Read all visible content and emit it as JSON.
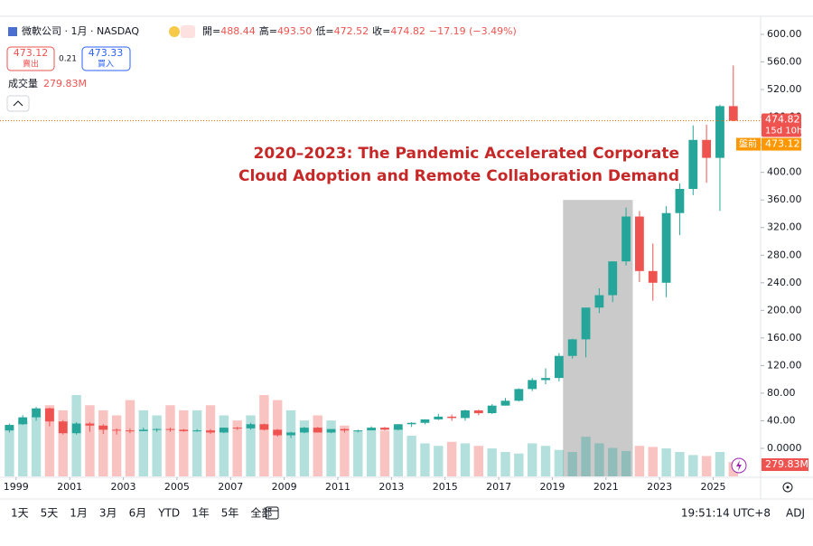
{
  "header": {
    "symbol": "微軟公司 · 1月 · NASDAQ",
    "open_label": "開=",
    "open": "488.44",
    "high_label": "高=",
    "high": "493.50",
    "low_label": "低=",
    "low": "472.52",
    "close_label": "收=",
    "close": "474.82",
    "change": "−17.19 (−3.49%)",
    "sell_price": "473.12",
    "sell_label": "賣出",
    "spread": "0.21",
    "buy_price": "473.33",
    "buy_label": "買入",
    "volume_label": "成交量",
    "volume": "279.83M"
  },
  "chart_data": {
    "type": "candlestick",
    "annotation": [
      "2020–2023: The Pandemic Accelerated Corporate",
      "Cloud Adoption and Remote Collaboration Demand"
    ],
    "highlight": {
      "x_start": 2019.4,
      "x_end": 2022.0,
      "y_top": 360
    },
    "x": [
      1998.75,
      1999.25,
      1999.75,
      2000.25,
      2000.75,
      2001.25,
      2001.75,
      2002.25,
      2002.75,
      2003.25,
      2003.75,
      2004.25,
      2004.75,
      2005.25,
      2005.75,
      2006.25,
      2006.75,
      2007.25,
      2007.75,
      2008.25,
      2008.75,
      2009.25,
      2009.75,
      2010.25,
      2010.75,
      2011.25,
      2011.75,
      2012.25,
      2012.75,
      2013.25,
      2013.75,
      2014.25,
      2014.75,
      2015.25,
      2015.75,
      2016.25,
      2016.75,
      2017.25,
      2017.75,
      2018.25,
      2018.75,
      2019.25,
      2019.75,
      2020.25,
      2020.75,
      2021.25,
      2021.75,
      2022.25,
      2022.75,
      2023.25,
      2023.75,
      2024.25,
      2024.75,
      2025.25,
      2025.75
    ],
    "open": [
      26,
      35,
      45,
      58,
      39,
      22,
      36,
      33,
      27,
      26,
      25,
      27,
      28,
      27,
      25,
      26,
      23,
      30,
      29,
      35,
      27,
      19,
      23,
      30,
      23,
      28,
      26,
      26,
      30,
      27,
      35,
      37,
      42,
      46,
      44,
      55,
      51,
      62,
      69,
      86,
      99,
      102,
      134,
      158,
      204,
      222,
      271,
      336,
      257,
      240,
      341,
      376,
      447,
      421,
      496
    ],
    "high": [
      36,
      48,
      60,
      59,
      41,
      38,
      38,
      35,
      29,
      29,
      30,
      29,
      30,
      28,
      28,
      28,
      30,
      31,
      37,
      36,
      28,
      24,
      31,
      31,
      28,
      29,
      27,
      32,
      31,
      35,
      38,
      42,
      50,
      49,
      56,
      56,
      64,
      73,
      87,
      102,
      116,
      138,
      159,
      204,
      232,
      271,
      349,
      344,
      297,
      351,
      384,
      468,
      469,
      498,
      555
    ],
    "low": [
      23,
      34,
      40,
      32,
      20,
      20,
      24,
      21,
      20,
      22,
      25,
      24,
      24,
      24,
      24,
      21,
      22,
      27,
      27,
      26,
      17,
      15,
      22,
      23,
      22,
      23,
      23,
      26,
      26,
      26,
      31,
      35,
      41,
      40,
      40,
      48,
      50,
      62,
      68,
      83,
      93,
      97,
      130,
      132,
      196,
      212,
      265,
      241,
      214,
      219,
      309,
      367,
      385,
      344,
      474
    ],
    "close": [
      34,
      45,
      58,
      39,
      22,
      36,
      33,
      27,
      26,
      25,
      27,
      28,
      27,
      25,
      26,
      23,
      30,
      29,
      35,
      27,
      19,
      23,
      30,
      23,
      28,
      26,
      26,
      30,
      27,
      35,
      37,
      42,
      46,
      44,
      55,
      51,
      62,
      69,
      86,
      99,
      102,
      134,
      158,
      204,
      222,
      271,
      336,
      257,
      240,
      341,
      376,
      447,
      421,
      496,
      474.82
    ],
    "volume": [
      1000,
      1100,
      1200,
      1400,
      1300,
      1600,
      1400,
      1300,
      1200,
      1500,
      1300,
      1200,
      1400,
      1300,
      1300,
      1400,
      1200,
      1100,
      1200,
      1600,
      1500,
      1300,
      1100,
      1200,
      1100,
      1000,
      900,
      900,
      900,
      950,
      800,
      650,
      600,
      680,
      650,
      600,
      550,
      480,
      450,
      650,
      600,
      520,
      480,
      780,
      650,
      560,
      500,
      600,
      580,
      550,
      480,
      420,
      400,
      480,
      279.83
    ],
    "up_color": "#26a69a",
    "down_color": "#ef5350",
    "xlim": [
      1998.4,
      2026.7
    ],
    "xticks": [
      1999,
      2001,
      2003,
      2005,
      2007,
      2009,
      2011,
      2013,
      2015,
      2017,
      2019,
      2021,
      2023,
      2025
    ],
    "ylim": [
      0,
      600
    ],
    "yticks": [
      {
        "value": 0,
        "label": "0.0000"
      },
      {
        "value": 40,
        "label": "40.00"
      },
      {
        "value": 80,
        "label": "80.00"
      },
      {
        "value": 120,
        "label": "120.00"
      },
      {
        "value": 160,
        "label": "160.00"
      },
      {
        "value": 200,
        "label": "200.00"
      },
      {
        "value": 240,
        "label": "240.00"
      },
      {
        "value": 280,
        "label": "280.00"
      },
      {
        "value": 320,
        "label": "320.00"
      },
      {
        "value": 360,
        "label": "360.00"
      },
      {
        "value": 400,
        "label": "400.00"
      },
      {
        "value": 440,
        "label": "440.00"
      },
      {
        "value": 480,
        "label": "480.00"
      },
      {
        "value": 520,
        "label": "520.00"
      },
      {
        "value": 560,
        "label": "560.00"
      },
      {
        "value": 600,
        "label": "600.00"
      }
    ],
    "last_price": {
      "value": 474.82,
      "label": "474.82",
      "countdown": "15d 10h"
    },
    "premarket": {
      "value": 473.12,
      "label": "473.12",
      "tag": "盤前"
    }
  },
  "toolbar": {
    "ranges": [
      "1天",
      "5天",
      "1月",
      "3月",
      "6月",
      "YTD",
      "1年",
      "5年",
      "全部"
    ],
    "time": "19:51:14 UTC+8",
    "adj": "ADJ"
  }
}
